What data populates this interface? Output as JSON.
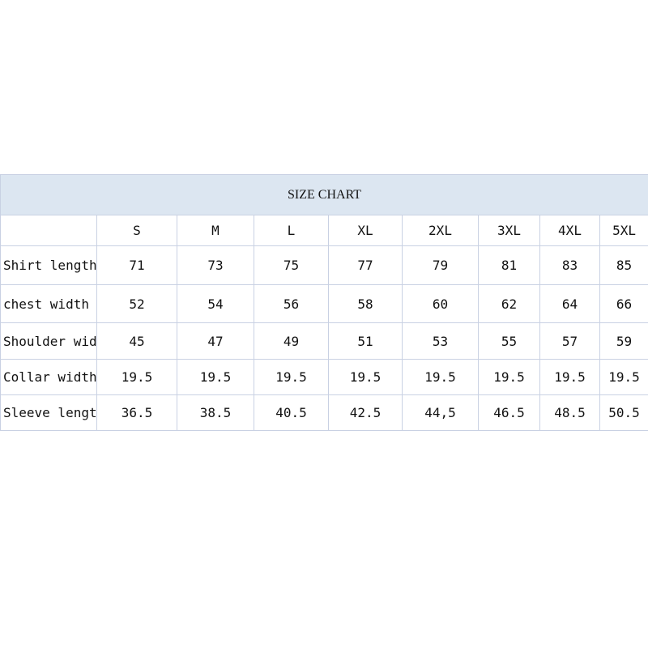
{
  "title": "SIZE CHART",
  "sizes": [
    "S",
    "M",
    "L",
    "XL",
    "2XL",
    "3XL",
    "4XL",
    "5XL"
  ],
  "rows": [
    {
      "label": "Shirt length",
      "values": [
        "71",
        "73",
        "75",
        "77",
        "79",
        "81",
        "83",
        "85"
      ]
    },
    {
      "label": "chest width",
      "values": [
        "52",
        "54",
        "56",
        "58",
        "60",
        "62",
        "64",
        "66"
      ]
    },
    {
      "label": "Shoulder width",
      "values": [
        "45",
        "47",
        "49",
        "51",
        "53",
        "55",
        "57",
        "59"
      ]
    },
    {
      "label": "Collar width",
      "values": [
        "19.5",
        "19.5",
        "19.5",
        "19.5",
        "19.5",
        "19.5",
        "19.5",
        "19.5"
      ]
    },
    {
      "label": "Sleeve length",
      "values": [
        "36.5",
        "38.5",
        "40.5",
        "42.5",
        "44,5",
        "46.5",
        "48.5",
        "50.5"
      ]
    }
  ]
}
